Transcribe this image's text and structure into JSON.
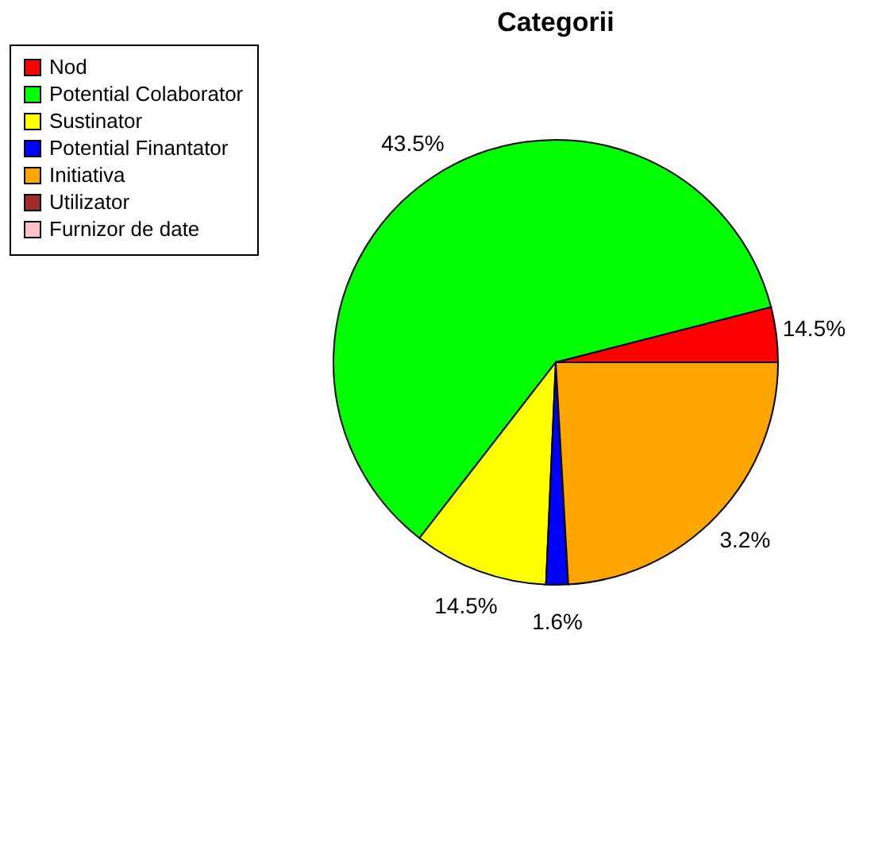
{
  "chart_data": {
    "type": "pie",
    "title": "Categorii",
    "categories": [
      "Nod",
      "Potential Colaborator",
      "Sustinator",
      "Potential Finantator",
      "Initiativa",
      "Utilizator",
      "Furnizor de date"
    ],
    "values": [
      4,
      60.5,
      9.8,
      1.6,
      24.1,
      0,
      0
    ],
    "colors": [
      "#ff0000",
      "#00ff00",
      "#ffff00",
      "#0000ff",
      "#ffa500",
      "#a52a2a",
      "#ffc0cb"
    ],
    "annotations": [
      "14.5%",
      "43.5%",
      "14.5%",
      "1.6%",
      "3.2%"
    ],
    "legend": "left"
  }
}
